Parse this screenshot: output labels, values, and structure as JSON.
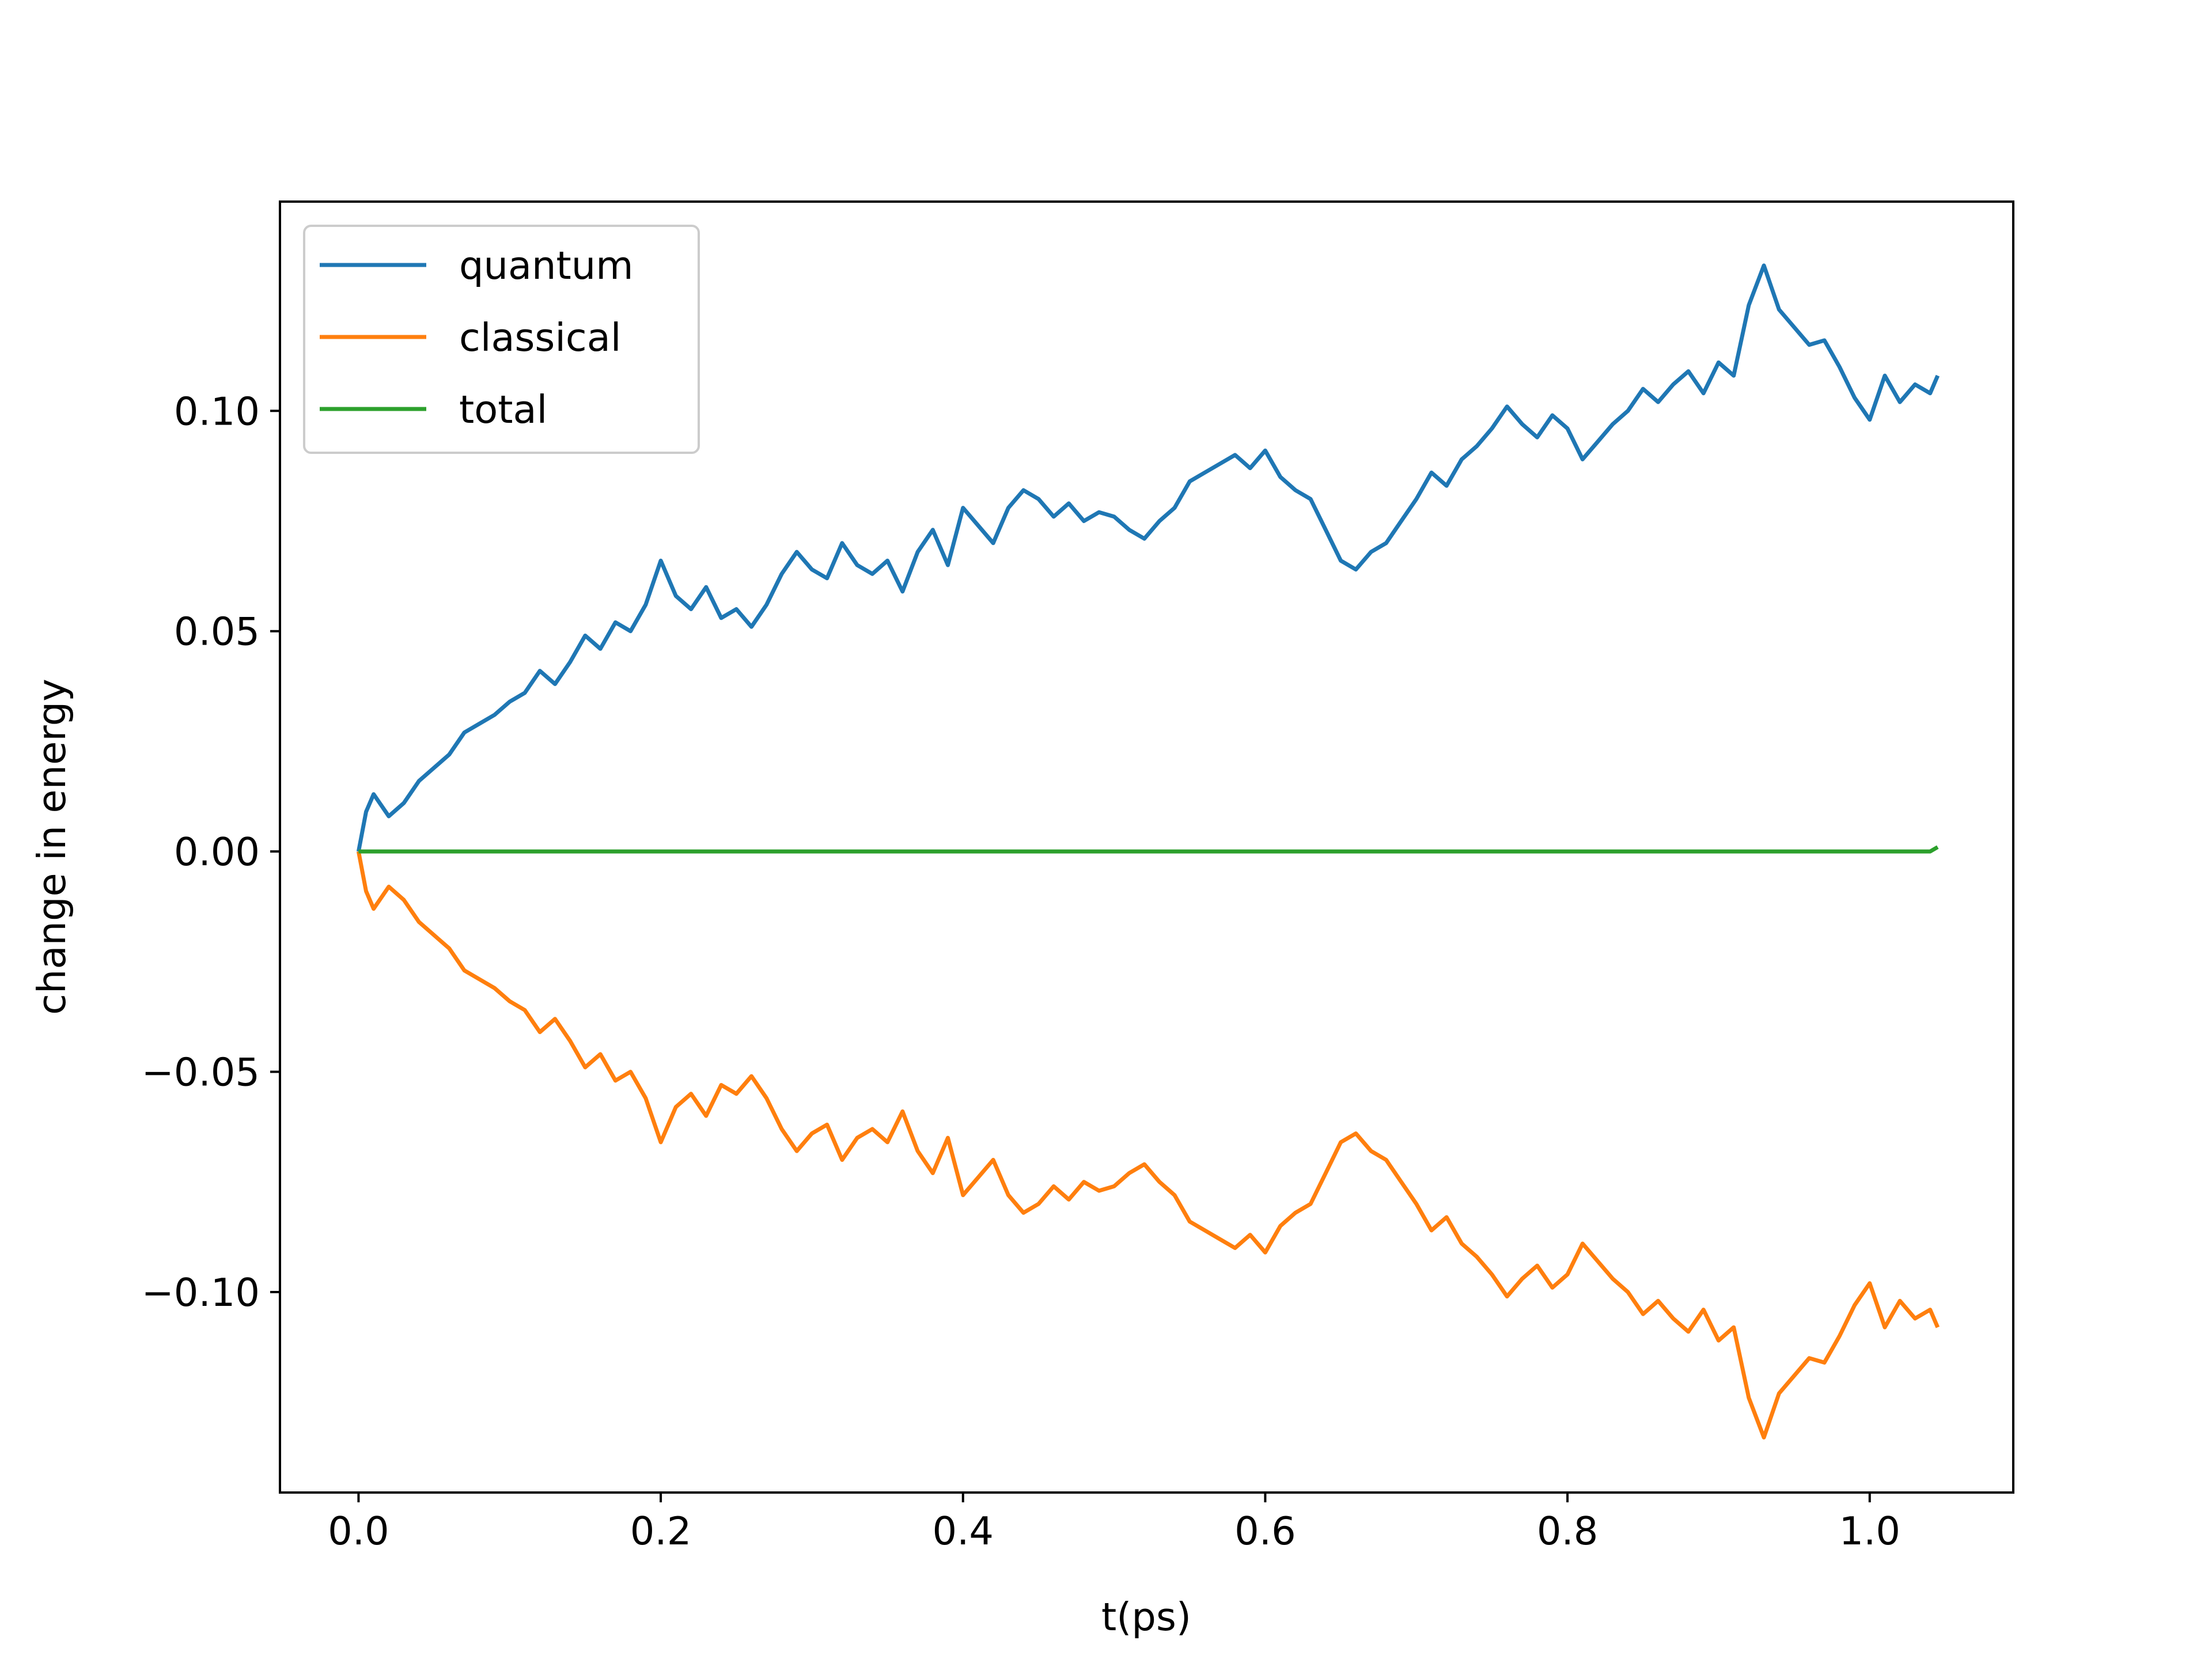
{
  "chart_data": {
    "type": "line",
    "xlabel": "t(ps)",
    "ylabel": "change in energy",
    "xlim": [
      -0.052,
      1.095
    ],
    "ylim": [
      -0.1455,
      0.1475
    ],
    "xticks": [
      0.0,
      0.2,
      0.4,
      0.6,
      0.8,
      1.0
    ],
    "xtick_labels": [
      "0.0",
      "0.2",
      "0.4",
      "0.6",
      "0.8",
      "1.0"
    ],
    "yticks": [
      -0.1,
      -0.05,
      0.0,
      0.05,
      0.1
    ],
    "ytick_labels": [
      "−0.10",
      "−0.05",
      "0.00",
      "0.05",
      "0.10"
    ],
    "grid": false,
    "legend_position": "top-left",
    "colors": {
      "quantum": "#1f77b4",
      "classical": "#ff7f0e",
      "total": "#2ca02c"
    },
    "x": [
      0.0,
      0.005,
      0.01,
      0.02,
      0.03,
      0.04,
      0.05,
      0.06,
      0.07,
      0.08,
      0.09,
      0.1,
      0.11,
      0.12,
      0.13,
      0.14,
      0.15,
      0.16,
      0.17,
      0.18,
      0.19,
      0.2,
      0.21,
      0.22,
      0.23,
      0.24,
      0.25,
      0.26,
      0.27,
      0.28,
      0.29,
      0.3,
      0.31,
      0.32,
      0.33,
      0.34,
      0.35,
      0.36,
      0.37,
      0.38,
      0.39,
      0.4,
      0.41,
      0.42,
      0.43,
      0.44,
      0.45,
      0.46,
      0.47,
      0.48,
      0.49,
      0.5,
      0.51,
      0.52,
      0.53,
      0.54,
      0.55,
      0.56,
      0.57,
      0.58,
      0.59,
      0.6,
      0.61,
      0.62,
      0.63,
      0.64,
      0.65,
      0.66,
      0.67,
      0.68,
      0.69,
      0.7,
      0.71,
      0.72,
      0.73,
      0.74,
      0.75,
      0.76,
      0.77,
      0.78,
      0.79,
      0.8,
      0.81,
      0.82,
      0.83,
      0.84,
      0.85,
      0.86,
      0.87,
      0.88,
      0.89,
      0.9,
      0.91,
      0.92,
      0.93,
      0.94,
      0.95,
      0.96,
      0.97,
      0.98,
      0.99,
      1.0,
      1.01,
      1.02,
      1.03,
      1.04,
      1.045
    ],
    "series": [
      {
        "name": "quantum",
        "values": [
          0.0,
          0.009,
          0.013,
          0.008,
          0.011,
          0.016,
          0.019,
          0.022,
          0.027,
          0.029,
          0.031,
          0.034,
          0.036,
          0.041,
          0.038,
          0.043,
          0.049,
          0.046,
          0.052,
          0.05,
          0.056,
          0.066,
          0.058,
          0.055,
          0.06,
          0.053,
          0.055,
          0.051,
          0.056,
          0.063,
          0.068,
          0.064,
          0.062,
          0.07,
          0.065,
          0.063,
          0.066,
          0.059,
          0.068,
          0.073,
          0.065,
          0.078,
          0.074,
          0.07,
          0.078,
          0.082,
          0.08,
          0.076,
          0.079,
          0.075,
          0.077,
          0.076,
          0.073,
          0.071,
          0.075,
          0.078,
          0.084,
          0.086,
          0.088,
          0.09,
          0.087,
          0.091,
          0.085,
          0.082,
          0.08,
          0.073,
          0.066,
          0.064,
          0.068,
          0.07,
          0.075,
          0.08,
          0.086,
          0.083,
          0.089,
          0.092,
          0.096,
          0.101,
          0.097,
          0.094,
          0.099,
          0.096,
          0.089,
          0.093,
          0.097,
          0.1,
          0.105,
          0.102,
          0.106,
          0.109,
          0.104,
          0.111,
          0.108,
          0.124,
          0.133,
          0.123,
          0.119,
          0.115,
          0.116,
          0.11,
          0.103,
          0.098,
          0.108,
          0.102,
          0.106,
          0.104,
          0.108
        ]
      },
      {
        "name": "classical",
        "values": [
          0.0,
          -0.009,
          -0.013,
          -0.008,
          -0.011,
          -0.016,
          -0.019,
          -0.022,
          -0.027,
          -0.029,
          -0.031,
          -0.034,
          -0.036,
          -0.041,
          -0.038,
          -0.043,
          -0.049,
          -0.046,
          -0.052,
          -0.05,
          -0.056,
          -0.066,
          -0.058,
          -0.055,
          -0.06,
          -0.053,
          -0.055,
          -0.051,
          -0.056,
          -0.063,
          -0.068,
          -0.064,
          -0.062,
          -0.07,
          -0.065,
          -0.063,
          -0.066,
          -0.059,
          -0.068,
          -0.073,
          -0.065,
          -0.078,
          -0.074,
          -0.07,
          -0.078,
          -0.082,
          -0.08,
          -0.076,
          -0.079,
          -0.075,
          -0.077,
          -0.076,
          -0.073,
          -0.071,
          -0.075,
          -0.078,
          -0.084,
          -0.086,
          -0.088,
          -0.09,
          -0.087,
          -0.091,
          -0.085,
          -0.082,
          -0.08,
          -0.073,
          -0.066,
          -0.064,
          -0.068,
          -0.07,
          -0.075,
          -0.08,
          -0.086,
          -0.083,
          -0.089,
          -0.092,
          -0.096,
          -0.101,
          -0.097,
          -0.094,
          -0.099,
          -0.096,
          -0.089,
          -0.093,
          -0.097,
          -0.1,
          -0.105,
          -0.102,
          -0.106,
          -0.109,
          -0.104,
          -0.111,
          -0.108,
          -0.124,
          -0.133,
          -0.123,
          -0.119,
          -0.115,
          -0.116,
          -0.11,
          -0.103,
          -0.098,
          -0.108,
          -0.102,
          -0.106,
          -0.104,
          -0.108
        ]
      },
      {
        "name": "total",
        "values": [
          0.0,
          0.0,
          0.0,
          0.0,
          0.0,
          0.0,
          0.0,
          0.0,
          0.0,
          0.0,
          0.0,
          0.0,
          0.0,
          0.0,
          0.0,
          0.0,
          0.0,
          0.0,
          0.0,
          0.0,
          0.0,
          0.0,
          0.0,
          0.0,
          0.0,
          0.0,
          0.0,
          0.0,
          0.0,
          0.0,
          0.0,
          0.0,
          0.0,
          0.0,
          0.0,
          0.0,
          0.0,
          0.0,
          0.0,
          0.0,
          0.0,
          0.0,
          0.0,
          0.0,
          0.0,
          0.0,
          0.0,
          0.0,
          0.0,
          0.0,
          0.0,
          0.0,
          0.0,
          0.0,
          0.0,
          0.0,
          0.0,
          0.0,
          0.0,
          0.0,
          0.0,
          0.0,
          0.0,
          0.0,
          0.0,
          0.0,
          0.0,
          0.0,
          0.0,
          0.0,
          0.0,
          0.0,
          0.0,
          0.0,
          0.0,
          0.0,
          0.0,
          0.0,
          0.0,
          0.0,
          0.0,
          0.0,
          0.0,
          0.0,
          0.0,
          0.0,
          0.0,
          0.0,
          0.0,
          0.0,
          0.0,
          0.0,
          0.0,
          0.0,
          0.0,
          0.0,
          0.0,
          0.0,
          0.0,
          0.0,
          0.0,
          0.0,
          0.0,
          0.0,
          0.0,
          0.0,
          0.001
        ]
      }
    ]
  }
}
